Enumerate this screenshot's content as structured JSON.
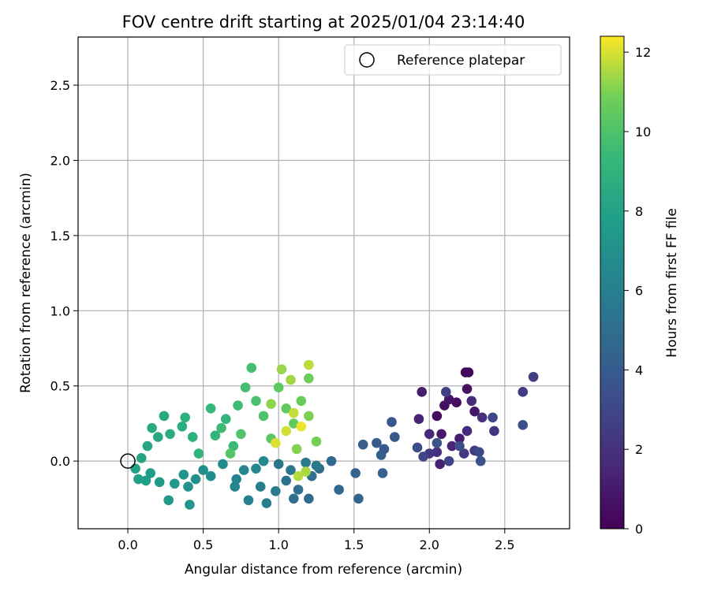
{
  "chart_data": {
    "type": "scatter",
    "title": "FOV centre drift starting at 2025/01/04 23:14:40",
    "xlabel": "Angular distance from reference (arcmin)",
    "ylabel": "Rotation from reference (arcmin)",
    "xlim": [
      -0.33,
      2.93
    ],
    "ylim": [
      -0.45,
      2.82
    ],
    "xticks": [
      "0.0",
      "0.5",
      "1.0",
      "1.5",
      "2.0",
      "2.5"
    ],
    "yticks": [
      "0.0",
      "0.5",
      "1.0",
      "1.5",
      "2.0",
      "2.5"
    ],
    "grid": true,
    "legend": {
      "placement": "top-right",
      "label": "Reference platepar"
    },
    "reference": {
      "x": 0.0,
      "y": 0.0
    },
    "colorbar": {
      "label": "Hours from first FF file",
      "range": [
        0,
        12.4
      ],
      "ticks": [
        "0",
        "2",
        "4",
        "6",
        "8",
        "10",
        "12"
      ],
      "colormap": "viridis"
    },
    "points": [
      [
        2.24,
        0.59,
        0.2
      ],
      [
        2.26,
        0.59,
        0.3
      ],
      [
        2.05,
        0.3,
        0.4
      ],
      [
        2.18,
        0.39,
        0.5
      ],
      [
        2.1,
        0.37,
        0.6
      ],
      [
        2.25,
        0.48,
        0.7
      ],
      [
        2.13,
        0.41,
        0.8
      ],
      [
        2.3,
        0.33,
        0.9
      ],
      [
        2.08,
        0.18,
        1.0
      ],
      [
        1.95,
        0.46,
        1.1
      ],
      [
        2.2,
        0.15,
        1.2
      ],
      [
        2.07,
        -0.02,
        1.3
      ],
      [
        1.93,
        0.28,
        1.4
      ],
      [
        2.15,
        0.1,
        1.5
      ],
      [
        2.0,
        0.18,
        1.6
      ],
      [
        2.25,
        0.2,
        1.7
      ],
      [
        2.28,
        0.4,
        1.8
      ],
      [
        2.05,
        0.06,
        1.9
      ],
      [
        2.35,
        0.29,
        2.0
      ],
      [
        2.43,
        0.2,
        2.1
      ],
      [
        2.23,
        0.05,
        2.2
      ],
      [
        2.0,
        0.05,
        2.3
      ],
      [
        2.3,
        0.07,
        2.4
      ],
      [
        2.62,
        0.46,
        2.5
      ],
      [
        2.69,
        0.56,
        2.6
      ],
      [
        2.11,
        0.46,
        2.7
      ],
      [
        2.13,
        0.0,
        2.8
      ],
      [
        1.96,
        0.03,
        2.9
      ],
      [
        2.42,
        0.29,
        3.0
      ],
      [
        2.33,
        0.06,
        3.1
      ],
      [
        2.2,
        0.1,
        3.2
      ],
      [
        1.92,
        0.09,
        3.3
      ],
      [
        2.62,
        0.24,
        3.4
      ],
      [
        2.34,
        0.0,
        3.5
      ],
      [
        2.05,
        0.12,
        3.6
      ],
      [
        1.75,
        0.26,
        3.7
      ],
      [
        1.77,
        0.16,
        3.8
      ],
      [
        1.7,
        0.08,
        3.9
      ],
      [
        1.65,
        0.12,
        4.0
      ],
      [
        1.56,
        0.11,
        4.1
      ],
      [
        1.68,
        0.04,
        4.2
      ],
      [
        1.69,
        -0.08,
        4.3
      ],
      [
        1.51,
        -0.08,
        4.4
      ],
      [
        1.53,
        -0.25,
        4.5
      ],
      [
        1.4,
        -0.19,
        4.6
      ],
      [
        1.35,
        0.0,
        4.7
      ],
      [
        1.27,
        -0.05,
        4.8
      ],
      [
        1.2,
        -0.25,
        4.9
      ],
      [
        1.1,
        -0.25,
        5.0
      ],
      [
        1.13,
        -0.19,
        5.1
      ],
      [
        1.22,
        -0.1,
        5.2
      ],
      [
        1.05,
        -0.13,
        5.3
      ],
      [
        1.0,
        -0.02,
        5.4
      ],
      [
        1.08,
        -0.06,
        5.5
      ],
      [
        1.18,
        -0.01,
        5.6
      ],
      [
        1.25,
        -0.03,
        5.7
      ],
      [
        0.98,
        -0.2,
        5.8
      ],
      [
        0.88,
        -0.17,
        5.9
      ],
      [
        0.92,
        -0.28,
        6.0
      ],
      [
        0.8,
        -0.26,
        6.1
      ],
      [
        0.72,
        -0.12,
        6.2
      ],
      [
        0.71,
        -0.17,
        6.3
      ],
      [
        0.77,
        -0.06,
        6.4
      ],
      [
        0.85,
        -0.05,
        6.5
      ],
      [
        0.9,
        0.0,
        6.6
      ],
      [
        0.63,
        -0.02,
        6.7
      ],
      [
        0.55,
        -0.1,
        6.8
      ],
      [
        0.5,
        -0.06,
        6.9
      ],
      [
        0.45,
        -0.12,
        7.0
      ],
      [
        0.4,
        -0.17,
        7.1
      ],
      [
        0.37,
        -0.09,
        7.2
      ],
      [
        0.41,
        -0.29,
        7.3
      ],
      [
        0.27,
        -0.26,
        7.4
      ],
      [
        0.31,
        -0.15,
        7.5
      ],
      [
        0.21,
        -0.14,
        7.6
      ],
      [
        0.15,
        -0.08,
        7.7
      ],
      [
        0.12,
        -0.13,
        7.8
      ],
      [
        0.07,
        -0.12,
        7.9
      ],
      [
        0.05,
        -0.05,
        8.0
      ],
      [
        0.09,
        0.02,
        8.1
      ],
      [
        0.13,
        0.1,
        8.2
      ],
      [
        0.2,
        0.16,
        8.3
      ],
      [
        0.24,
        0.3,
        8.4
      ],
      [
        0.16,
        0.22,
        8.5
      ],
      [
        0.28,
        0.18,
        8.6
      ],
      [
        0.36,
        0.23,
        8.7
      ],
      [
        0.38,
        0.29,
        8.8
      ],
      [
        0.43,
        0.16,
        8.9
      ],
      [
        0.47,
        0.05,
        9.0
      ],
      [
        0.58,
        0.17,
        9.1
      ],
      [
        0.65,
        0.28,
        9.2
      ],
      [
        0.55,
        0.35,
        9.3
      ],
      [
        0.7,
        0.1,
        9.4
      ],
      [
        0.62,
        0.22,
        9.5
      ],
      [
        0.73,
        0.37,
        9.6
      ],
      [
        0.78,
        0.49,
        9.7
      ],
      [
        0.82,
        0.62,
        9.8
      ],
      [
        0.85,
        0.4,
        9.9
      ],
      [
        0.9,
        0.3,
        10.0
      ],
      [
        0.75,
        0.18,
        10.1
      ],
      [
        0.68,
        0.05,
        10.2
      ],
      [
        0.95,
        0.15,
        10.3
      ],
      [
        1.0,
        0.49,
        10.4
      ],
      [
        1.05,
        0.35,
        10.5
      ],
      [
        1.1,
        0.25,
        10.6
      ],
      [
        1.15,
        0.4,
        10.7
      ],
      [
        1.2,
        0.55,
        10.8
      ],
      [
        1.25,
        0.13,
        10.9
      ],
      [
        1.2,
        0.3,
        11.0
      ],
      [
        1.12,
        0.08,
        11.1
      ],
      [
        0.95,
        0.38,
        11.2
      ],
      [
        1.02,
        0.61,
        11.3
      ],
      [
        1.08,
        0.54,
        11.4
      ],
      [
        1.18,
        -0.07,
        11.5
      ],
      [
        1.13,
        -0.1,
        11.6
      ],
      [
        1.2,
        0.64,
        11.7
      ],
      [
        1.1,
        0.32,
        11.8
      ],
      [
        1.05,
        0.2,
        11.9
      ],
      [
        0.98,
        0.12,
        12.0
      ],
      [
        1.15,
        0.23,
        12.2
      ]
    ]
  }
}
